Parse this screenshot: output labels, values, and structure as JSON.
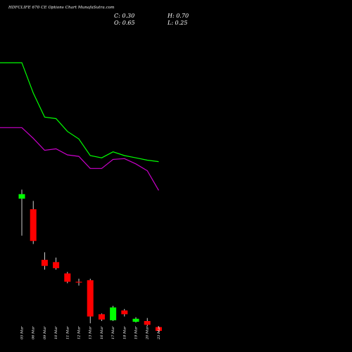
{
  "header": {
    "title": "HDFCLIFE 670 CE Options Chart MunafaSutra.com",
    "close": "C: 0.30",
    "high": "H: 0.70",
    "open": "O: 0.65",
    "low": "L: 0.25"
  },
  "colors": {
    "background": "#000000",
    "up": "#00ff00",
    "down": "#ff0000",
    "neutral": "#ffffff",
    "ma_fast": "#00ff00",
    "ma_slow": "#cc00cc"
  },
  "chart_data": {
    "type": "candlestick",
    "categories": [
      "05 Mar",
      "06 Mar",
      "09 Mar",
      "10 Mar",
      "11 Mar",
      "12 Mar",
      "13 Mar",
      "16 Mar",
      "17 Mar",
      "18 Mar",
      "19 Mar",
      "20 Mar",
      "23 Mar"
    ],
    "candles": [
      {
        "open": 6.35,
        "high": 6.95,
        "low": 3.9,
        "close": 6.65
      },
      {
        "open": 5.65,
        "high": 6.2,
        "low": 3.35,
        "close": 3.55
      },
      {
        "open": 2.3,
        "high": 2.8,
        "low": 1.65,
        "close": 1.9
      },
      {
        "open": 2.15,
        "high": 2.45,
        "low": 1.65,
        "close": 1.75
      },
      {
        "open": 1.4,
        "high": 1.5,
        "low": 0.75,
        "close": 0.85
      },
      {
        "open": 0.85,
        "high": 1.05,
        "low": 0.6,
        "close": 0.8
      },
      {
        "open": 0.95,
        "high": 1.05,
        "low": -1.9,
        "close": -1.45
      },
      {
        "open": -1.3,
        "high": -1.25,
        "low": -1.75,
        "close": -1.65
      },
      {
        "open": -1.7,
        "high": -0.75,
        "low": -1.75,
        "close": -0.85
      },
      {
        "open": -1.05,
        "high": -0.95,
        "low": -1.45,
        "close": -1.3
      },
      {
        "open": -1.8,
        "high": -1.5,
        "low": -1.85,
        "close": -1.6
      },
      {
        "open": -1.75,
        "high": -1.55,
        "low": -2.1,
        "close": -2.0
      },
      {
        "open": -2.15,
        "high": -2.1,
        "low": -2.45,
        "close": -2.4
      }
    ],
    "ma_lines": [
      {
        "color": "#00ff00",
        "x": [
          -1,
          0,
          1,
          2,
          3,
          4,
          5,
          6,
          7,
          8,
          9,
          10,
          11,
          12
        ],
        "values": [
          15.35,
          15.35,
          13.35,
          11.75,
          11.65,
          10.8,
          10.3,
          9.2,
          9.05,
          9.45,
          9.2,
          9.05,
          8.9,
          8.8
        ]
      },
      {
        "color": "#cc00cc",
        "x": [
          -1,
          0,
          1,
          2,
          3,
          4,
          5,
          6,
          7,
          8,
          9,
          10,
          11,
          12
        ],
        "values": [
          11.05,
          11.05,
          10.35,
          9.55,
          9.65,
          9.25,
          9.15,
          8.35,
          8.35,
          8.95,
          9.0,
          8.65,
          8.2,
          6.9
        ]
      }
    ],
    "ylim": [
      -3.8,
      19.5
    ]
  }
}
